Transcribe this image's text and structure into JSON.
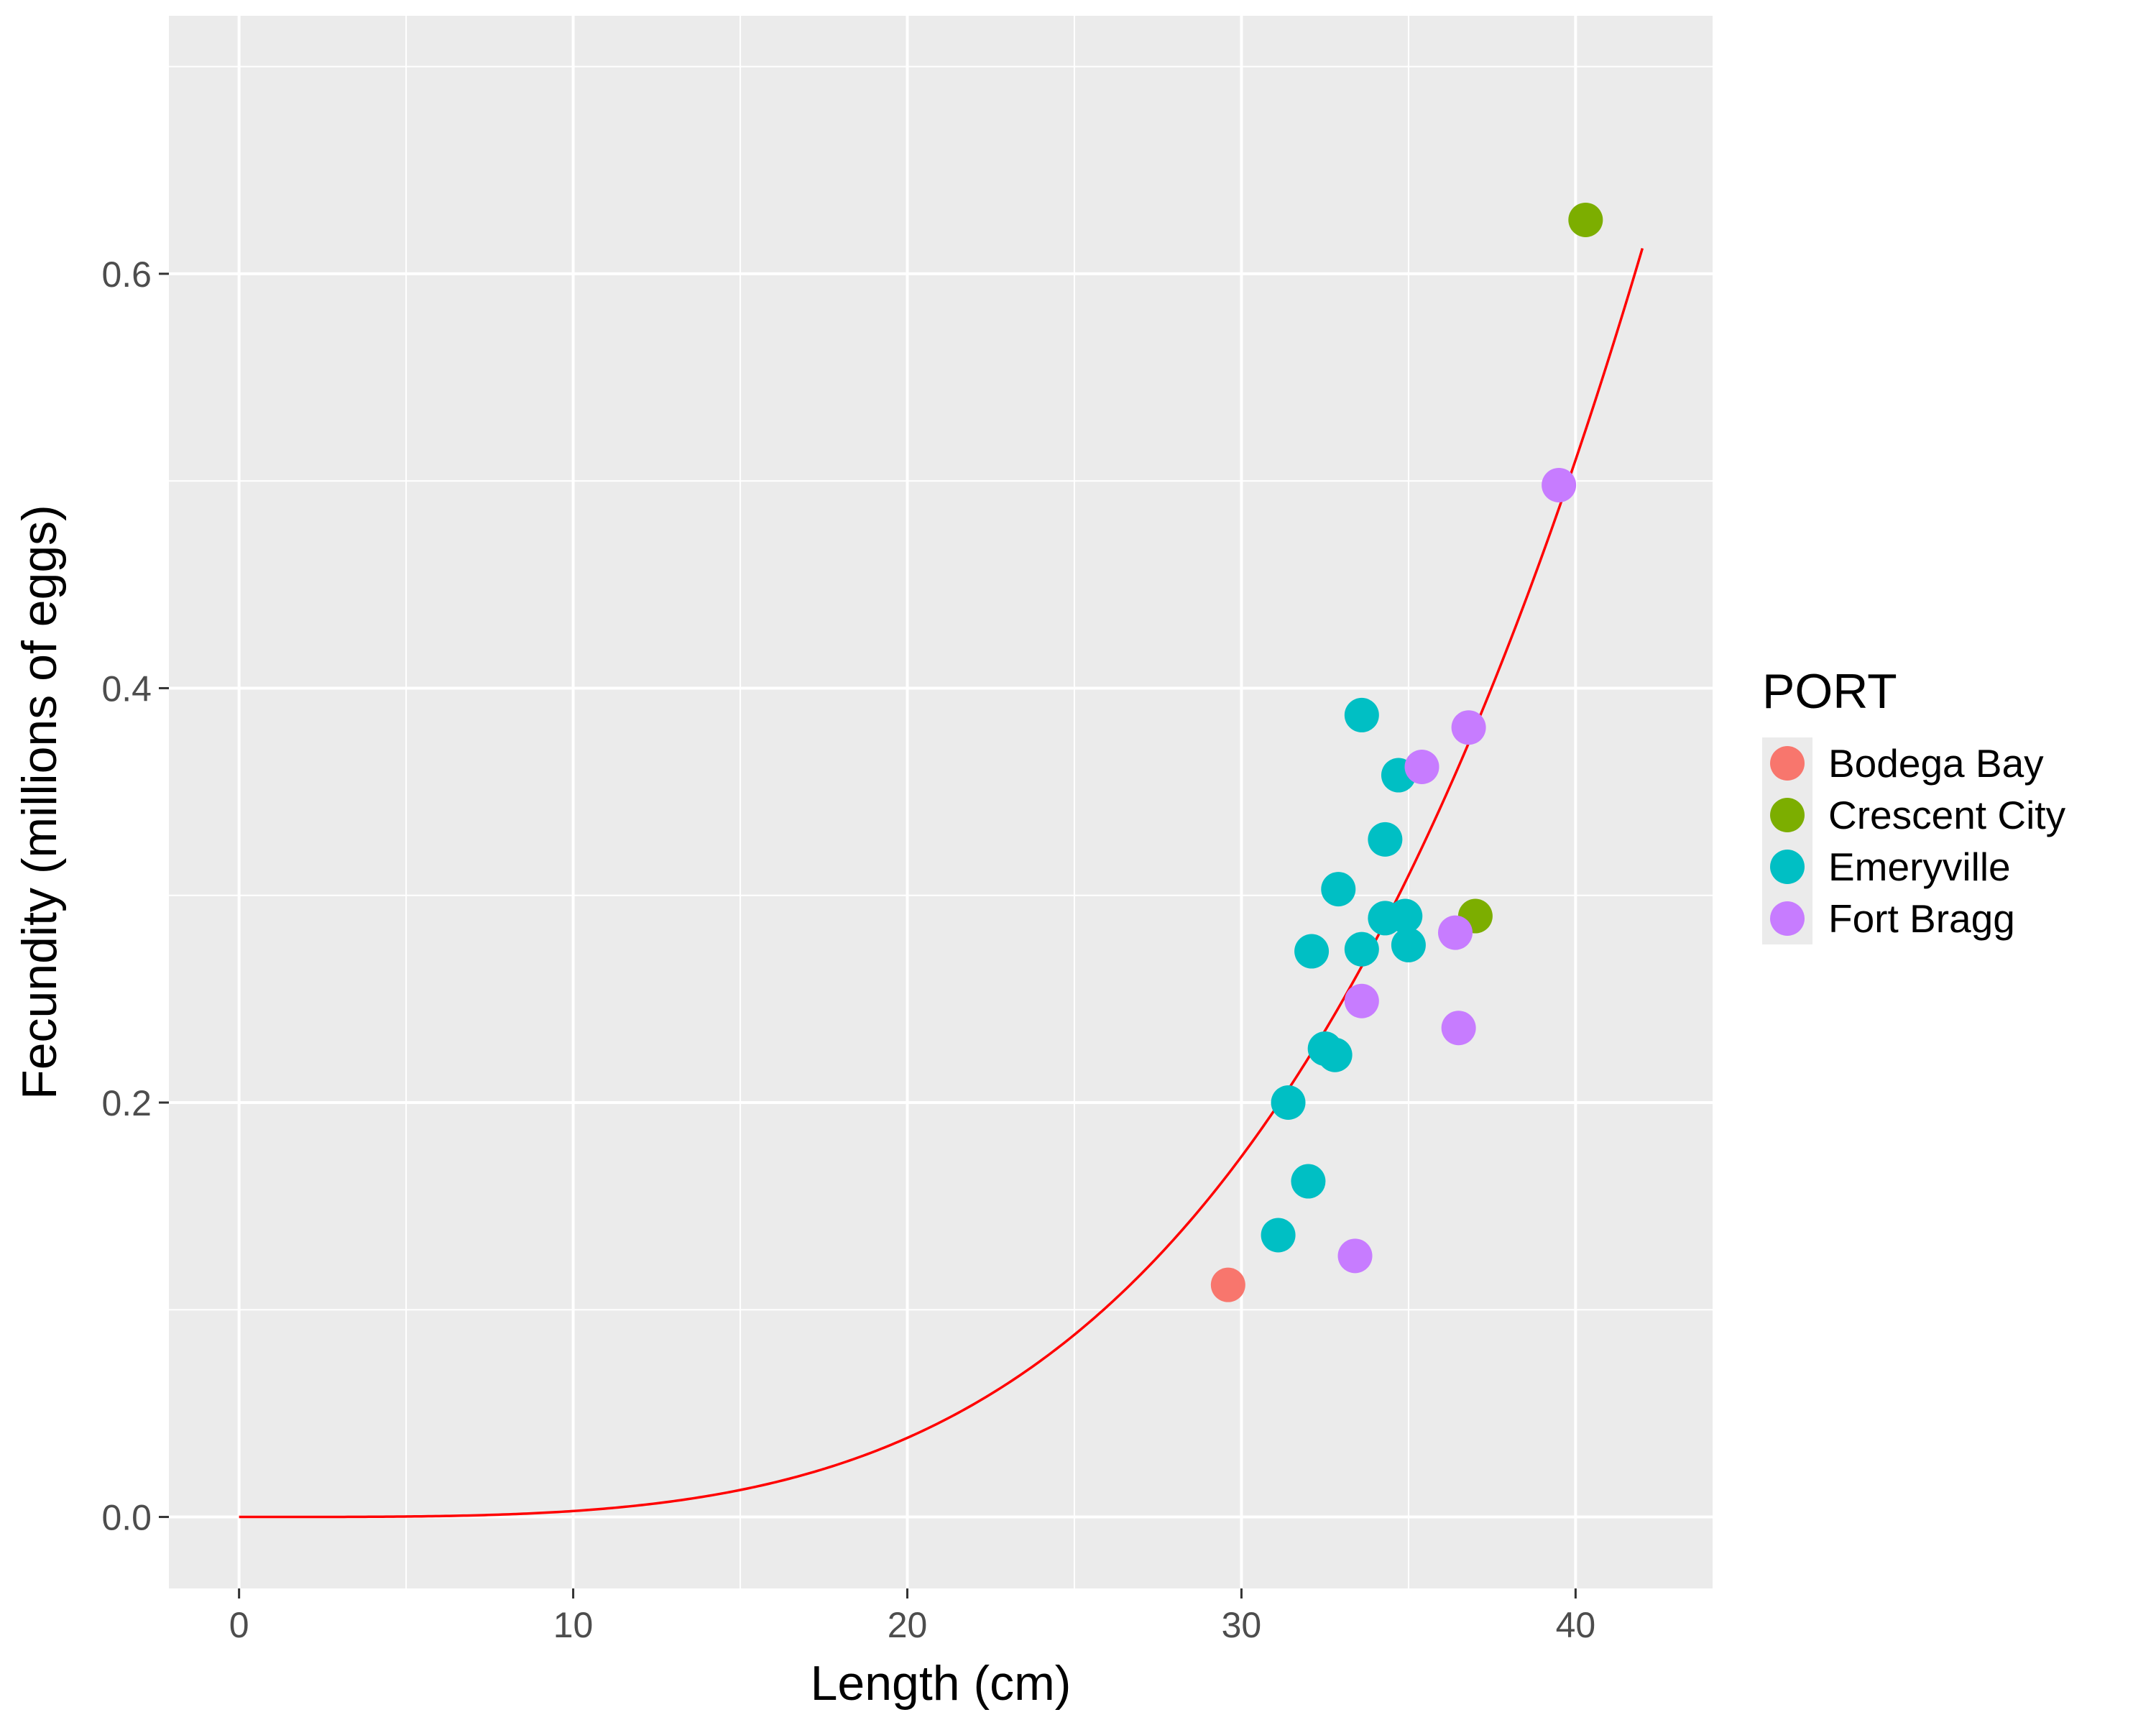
{
  "chart_data": {
    "type": "scatter",
    "title": "",
    "xlabel": "Length (cm)",
    "ylabel": "Fecundity (millions of eggs)",
    "xlim": [
      -2.1,
      44.1
    ],
    "ylim": [
      -0.0345,
      0.7245
    ],
    "x_ticks": [
      0,
      10,
      20,
      30,
      40
    ],
    "y_ticks": [
      0.0,
      0.2,
      0.4,
      0.6
    ],
    "x_tick_labels": [
      "0",
      "10",
      "20",
      "30",
      "40"
    ],
    "y_tick_labels": [
      "0.0",
      "0.2",
      "0.4",
      "0.6"
    ],
    "grid": true,
    "legend": {
      "title": "PORT",
      "placement": "right"
    },
    "series": [
      {
        "name": "Bodega Bay",
        "color": "#F8766D",
        "points": [
          {
            "x": 29.6,
            "y": 0.112
          }
        ]
      },
      {
        "name": "Crescent City",
        "color": "#7CAE00",
        "points": [
          {
            "x": 40.3,
            "y": 0.626
          },
          {
            "x": 37.0,
            "y": 0.29
          }
        ]
      },
      {
        "name": "Emeryville",
        "color": "#00BFC4",
        "points": [
          {
            "x": 33.6,
            "y": 0.387
          },
          {
            "x": 34.7,
            "y": 0.358
          },
          {
            "x": 34.3,
            "y": 0.327
          },
          {
            "x": 32.9,
            "y": 0.303
          },
          {
            "x": 34.9,
            "y": 0.29
          },
          {
            "x": 34.3,
            "y": 0.289
          },
          {
            "x": 32.1,
            "y": 0.273
          },
          {
            "x": 33.6,
            "y": 0.274
          },
          {
            "x": 35.0,
            "y": 0.276
          },
          {
            "x": 32.5,
            "y": 0.226
          },
          {
            "x": 32.8,
            "y": 0.223
          },
          {
            "x": 31.4,
            "y": 0.2
          },
          {
            "x": 32.0,
            "y": 0.162
          },
          {
            "x": 31.1,
            "y": 0.136
          }
        ]
      },
      {
        "name": "Fort Bragg",
        "color": "#C77CFF",
        "points": [
          {
            "x": 39.5,
            "y": 0.498
          },
          {
            "x": 36.8,
            "y": 0.381
          },
          {
            "x": 35.4,
            "y": 0.362
          },
          {
            "x": 36.4,
            "y": 0.282
          },
          {
            "x": 33.6,
            "y": 0.249
          },
          {
            "x": 36.5,
            "y": 0.236
          },
          {
            "x": 33.4,
            "y": 0.126
          }
        ]
      }
    ],
    "fit_curve": {
      "type": "power",
      "coefficient": 5.2e-07,
      "exponent": 3.74,
      "x_range": [
        0,
        42
      ],
      "color": "#ff0000"
    }
  }
}
